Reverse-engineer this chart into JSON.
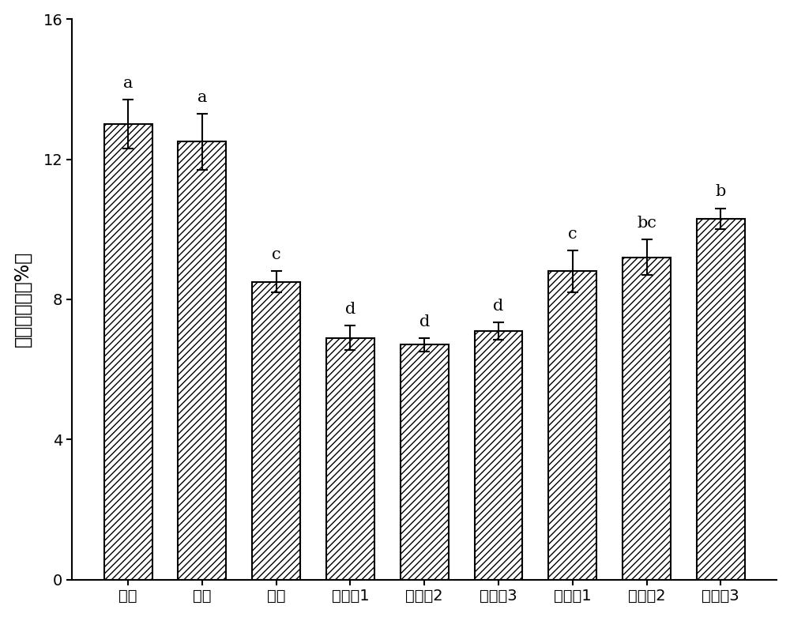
{
  "categories": [
    "对照",
    "空白",
    "蕎糖",
    "实施例1",
    "实施例2",
    "实施例3",
    "对比例1",
    "对比例2",
    "对比例3"
  ],
  "values": [
    13.0,
    12.5,
    8.5,
    6.9,
    6.7,
    7.1,
    8.8,
    9.2,
    10.3
  ],
  "errors": [
    0.7,
    0.8,
    0.3,
    0.35,
    0.2,
    0.25,
    0.6,
    0.5,
    0.3
  ],
  "letters": [
    "a",
    "a",
    "c",
    "d",
    "d",
    "d",
    "c",
    "bc",
    "b"
  ],
  "ylabel": "汁液流失率（%）",
  "ylim": [
    0,
    16
  ],
  "yticks": [
    0,
    4,
    8,
    12,
    16
  ],
  "bar_color": "#ffffff",
  "hatch": "////",
  "edge_color": "#000000",
  "letter_fontsize": 15,
  "tick_fontsize": 14,
  "ylabel_fontsize": 17,
  "bar_width": 0.65,
  "figure_width": 10.0,
  "figure_height": 7.81,
  "dpi": 100
}
